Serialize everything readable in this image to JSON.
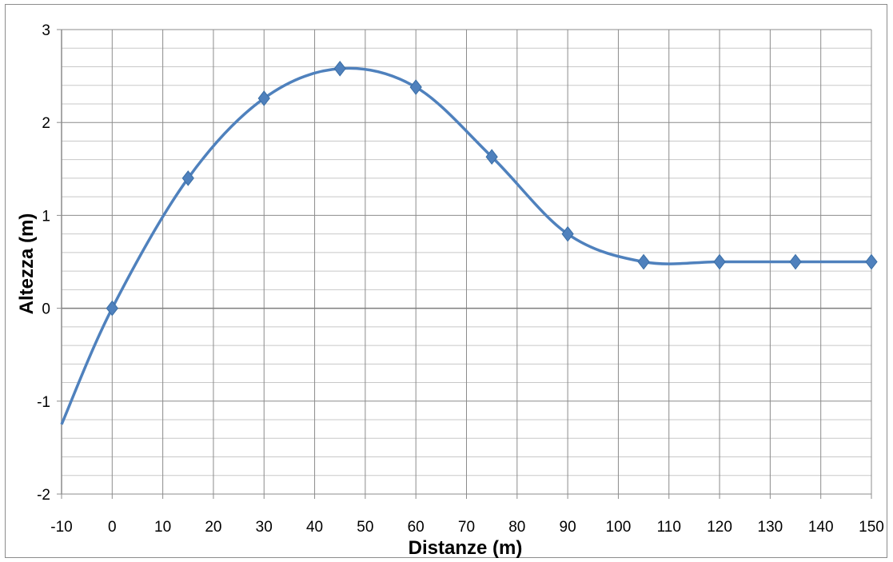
{
  "chart_data": {
    "type": "line",
    "smooth": true,
    "xlabel": "Distanze (m)",
    "ylabel": "Altezza (m)",
    "xlim": [
      -10,
      150
    ],
    "ylim": [
      -2,
      3
    ],
    "x_ticks": [
      -10,
      0,
      10,
      20,
      30,
      40,
      50,
      60,
      70,
      80,
      90,
      100,
      110,
      120,
      130,
      140,
      150
    ],
    "y_ticks": [
      -2,
      -1,
      0,
      1,
      2,
      3
    ],
    "grid": true,
    "minor_grid_y": 0.2,
    "legend": "none",
    "series": [
      {
        "x": [
          -10,
          0,
          15,
          30,
          45,
          60,
          75,
          90,
          105,
          120,
          135,
          150
        ],
        "y": [
          -1.25,
          0,
          1.4,
          2.26,
          2.58,
          2.38,
          1.63,
          0.8,
          0.5,
          0.5,
          0.5,
          0.5
        ],
        "markers": [
          false,
          true,
          true,
          true,
          true,
          true,
          true,
          true,
          true,
          true,
          true,
          true
        ],
        "color": "#4f81bd",
        "marker": "diamond"
      }
    ]
  }
}
